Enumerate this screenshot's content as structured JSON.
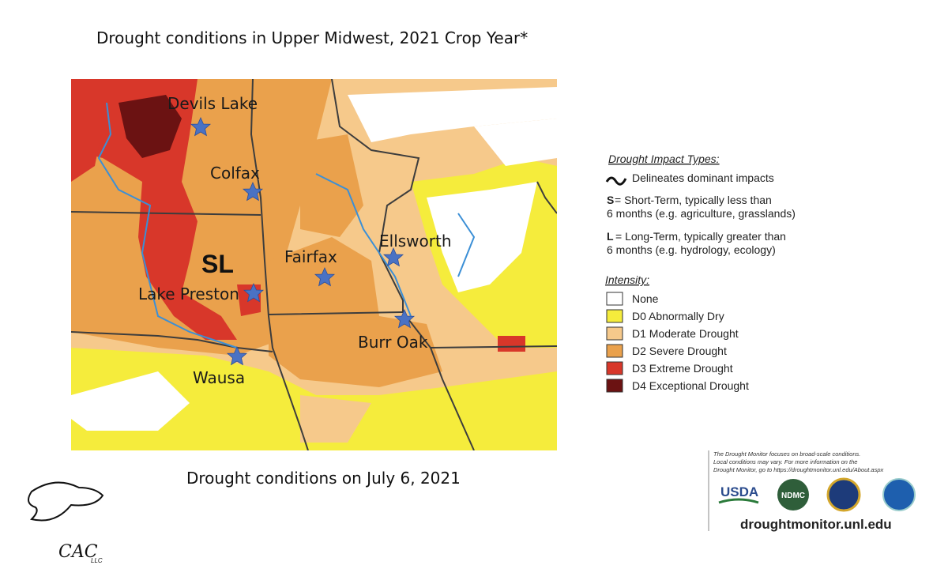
{
  "header": {
    "title": "Drought conditions in Upper Midwest, 2021 Crop Year*"
  },
  "map": {
    "places": [
      "Devils Lake",
      "Colfax",
      "Ellsworth",
      "Fairfax",
      "Lake Preston",
      "Burr Oak",
      "Wausa"
    ],
    "impact_label": "SL",
    "caption": "Drought conditions on July 6, 2021"
  },
  "legend": {
    "impact_title": "Drought Impact Types:",
    "delineates": "Delineates dominant impacts",
    "short": {
      "letter": "S",
      "line1": "= Short-Term, typically less than",
      "line2": "6 months (e.g. agriculture, grasslands)"
    },
    "long": {
      "letter": "L",
      "line1": "= Long-Term, typically greater than",
      "line2": "6 months (e.g. hydrology, ecology)"
    },
    "intensity_title": "Intensity:",
    "items": [
      "None",
      "D0 Abnormally Dry",
      "D1 Moderate Drought",
      "D2 Severe Drought",
      "D3 Extreme Drought",
      "D4 Exceptional Drought"
    ]
  },
  "footer": {
    "note": [
      "The Drought Monitor focuses on broad-scale conditions.",
      "Local conditions may vary. For more information on the",
      "Drought Monitor, go to https://droughtmonitor.unl.edu/About.aspx"
    ],
    "logos": [
      "USDA",
      "NDMC"
    ],
    "url": "droughtmonitor.unl.edu",
    "company": "CAC",
    "company_suffix": "LLC"
  }
}
